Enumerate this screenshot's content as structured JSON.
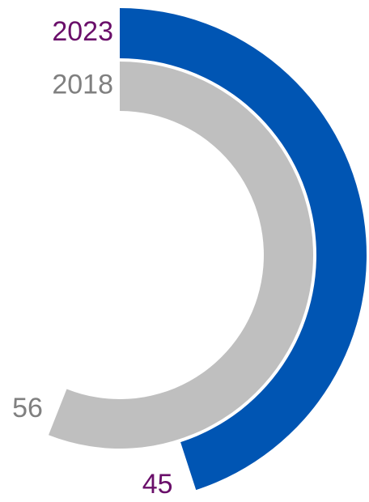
{
  "chart_data": {
    "type": "radial_bar",
    "categories": [
      "2023",
      "2018"
    ],
    "values": [
      45,
      56
    ],
    "colors": [
      "#0055b3",
      "#bfbfbf"
    ],
    "label_colors": [
      "#6a0f6a",
      "#808080"
    ],
    "ylim": [
      0,
      100
    ]
  }
}
